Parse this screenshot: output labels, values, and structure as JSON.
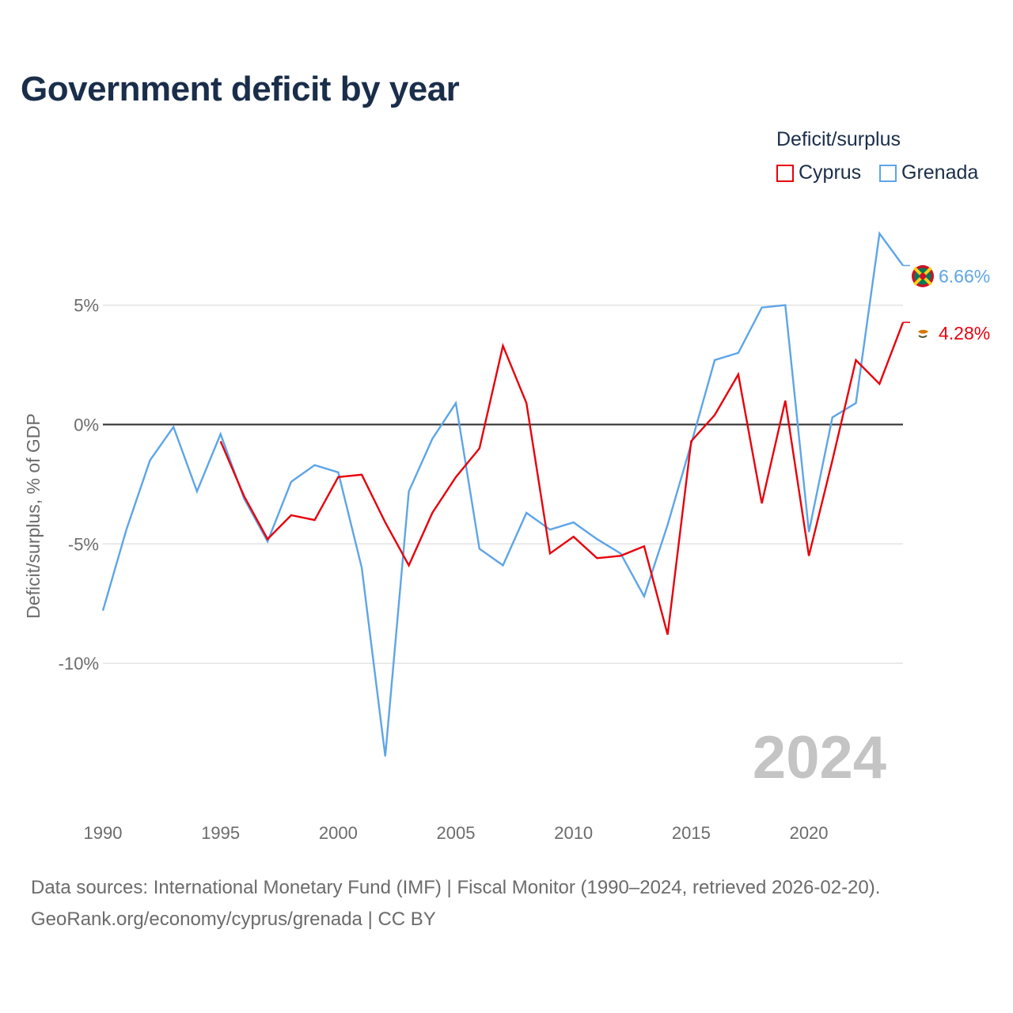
{
  "title": "Government deficit by year",
  "legend": {
    "title": "Deficit/surplus",
    "items": [
      {
        "label": "Cyprus",
        "color": "#e8000b"
      },
      {
        "label": "Grenada",
        "color": "#5da5e8"
      }
    ]
  },
  "year_watermark": "2024",
  "end_labels": {
    "grenada": "6.66%",
    "cyprus": "4.28%"
  },
  "source": {
    "line1": "Data sources: International Monetary Fund (IMF) | Fiscal Monitor (1990–2024, retrieved 2026-02-20).",
    "line2": "GeoRank.org/economy/cyprus/grenada | CC BY"
  },
  "chart_data": {
    "type": "line",
    "title": "Government deficit by year",
    "xlabel": "",
    "ylabel": "Deficit/surplus, % of GDP",
    "xlim": [
      1990,
      2024
    ],
    "ylim": [
      -15.5,
      8.5
    ],
    "x_ticks": [
      1990,
      1995,
      2000,
      2005,
      2010,
      2015,
      2020
    ],
    "y_ticks": [
      5,
      0,
      -5,
      -10
    ],
    "y_tick_labels": [
      "5%",
      "0%",
      "-5%",
      "-10%"
    ],
    "zero_line": true,
    "grid": true,
    "series": [
      {
        "name": "Cyprus",
        "color": "#e8000b",
        "x": [
          1995,
          1996,
          1997,
          1998,
          1999,
          2000,
          2001,
          2002,
          2003,
          2004,
          2005,
          2006,
          2007,
          2008,
          2009,
          2010,
          2011,
          2012,
          2013,
          2014,
          2015,
          2016,
          2017,
          2018,
          2019,
          2020,
          2021,
          2022,
          2023,
          2024
        ],
        "values": [
          -0.7,
          -3.0,
          -4.8,
          -3.8,
          -4.0,
          -2.2,
          -2.1,
          -4.1,
          -5.9,
          -3.7,
          -2.2,
          -1.0,
          3.3,
          0.9,
          -5.4,
          -4.7,
          -5.6,
          -5.5,
          -5.1,
          -8.8,
          -0.7,
          0.4,
          2.1,
          -3.3,
          1.0,
          -5.5,
          -1.5,
          2.7,
          1.7,
          4.28
        ]
      },
      {
        "name": "Grenada",
        "color": "#5da5e8",
        "x": [
          1990,
          1991,
          1992,
          1993,
          1994,
          1995,
          1996,
          1997,
          1998,
          1999,
          2000,
          2001,
          2002,
          2003,
          2004,
          2005,
          2006,
          2007,
          2008,
          2009,
          2010,
          2011,
          2012,
          2013,
          2014,
          2015,
          2016,
          2017,
          2018,
          2019,
          2020,
          2021,
          2022,
          2023,
          2024
        ],
        "values": [
          -7.8,
          -4.4,
          -1.5,
          -0.1,
          -2.8,
          -0.4,
          -3.1,
          -4.9,
          -2.4,
          -1.7,
          -2.0,
          -6.0,
          -13.9,
          -2.8,
          -0.6,
          0.9,
          -5.2,
          -5.9,
          -3.7,
          -4.4,
          -4.1,
          -4.8,
          -5.4,
          -7.2,
          -4.2,
          -0.8,
          2.7,
          3.0,
          4.9,
          5.0,
          -4.5,
          0.3,
          0.9,
          8.0,
          6.66
        ]
      }
    ]
  }
}
